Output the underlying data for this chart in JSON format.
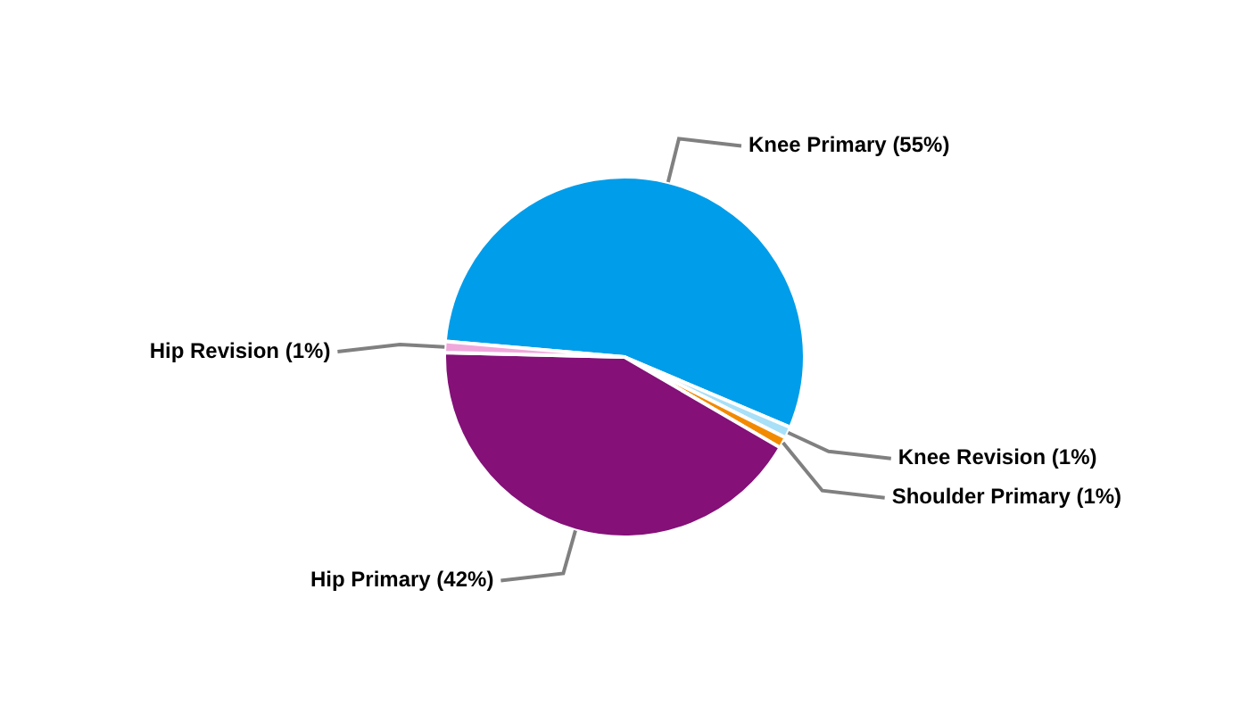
{
  "chart_data": {
    "type": "pie",
    "categories": [
      "Knee Primary (55%)",
      "Knee Revision (1%)",
      "Shoulder Primary (1%)",
      "Hip Primary (42%)",
      "Hip Revision (1%)"
    ],
    "values": [
      55,
      1,
      1,
      42,
      1
    ],
    "colors": [
      "#009dea",
      "#a8e0f8",
      "#f28a00",
      "#841078",
      "#f0a8dc"
    ]
  }
}
